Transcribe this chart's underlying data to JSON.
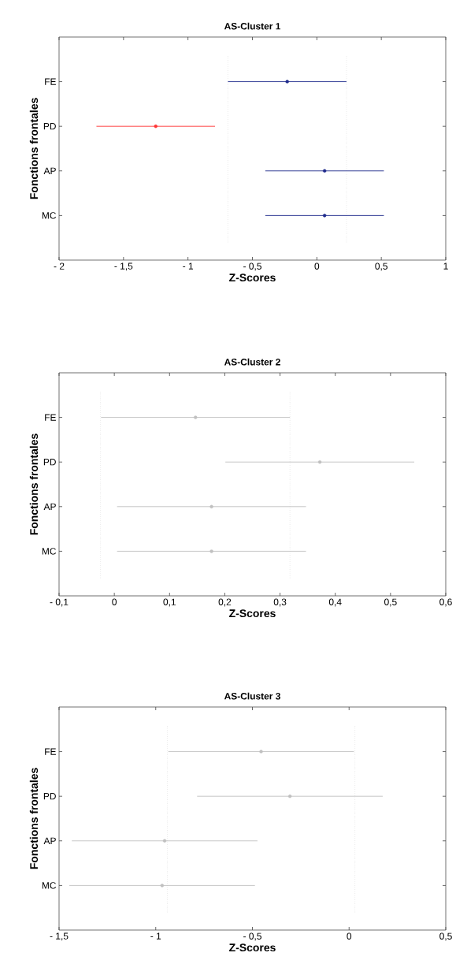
{
  "chart_data": [
    {
      "type": "scatter",
      "orientation": "horizontal",
      "title": "AS-Cluster 1",
      "xlabel": "Z-Scores",
      "ylabel": "Fonctions frontales",
      "categories": [
        "FE",
        "PD",
        "AP",
        "MC"
      ],
      "values": [
        -0.23,
        -1.25,
        0.06,
        0.06
      ],
      "errors": [
        0.46,
        0.46,
        0.46,
        0.46
      ],
      "colors": [
        "#1f2a8c",
        "#ff3333",
        "#1f2a8c",
        "#1f2a8c"
      ],
      "xlim": [
        -2,
        1
      ],
      "xticks": [
        {
          "value": -2,
          "label": "- 2"
        },
        {
          "value": -1.5,
          "label": "- 1,5"
        },
        {
          "value": -1,
          "label": "- 1"
        },
        {
          "value": -0.5,
          "label": "- 0,5"
        },
        0,
        {
          "value": 0.5,
          "label": "0,5"
        },
        1
      ],
      "ref_lines": [
        {
          "axis": "x",
          "value": -0.69,
          "color": "#c8c8c8",
          "line_style": "dotted"
        },
        {
          "axis": "x",
          "value": 0.23,
          "color": "#c8c8c8",
          "line_style": "dotted"
        }
      ]
    },
    {
      "type": "scatter",
      "orientation": "horizontal",
      "title": "AS-Cluster 2",
      "xlabel": "Z-Scores",
      "ylabel": "Fonctions frontales",
      "categories": [
        "FE",
        "PD",
        "AP",
        "MC"
      ],
      "values": [
        0.147,
        0.372,
        0.176,
        0.176
      ],
      "errors": [
        0.171,
        0.171,
        0.171,
        0.171
      ],
      "colors": [
        "#c0c0c0",
        "#c0c0c0",
        "#c0c0c0",
        "#c0c0c0"
      ],
      "xlim": [
        -0.1,
        0.6
      ],
      "xticks": [
        {
          "value": -0.1,
          "label": "- 0,1"
        },
        0,
        {
          "value": 0.1,
          "label": "0,1"
        },
        {
          "value": 0.2,
          "label": "0,2"
        },
        {
          "value": 0.3,
          "label": "0,3"
        },
        {
          "value": 0.4,
          "label": "0,4"
        },
        {
          "value": 0.5,
          "label": "0,5"
        },
        {
          "value": 0.6,
          "label": "0,6"
        }
      ],
      "ref_lines": [
        {
          "axis": "x",
          "value": -0.025,
          "color": "#c8c8c8",
          "line_style": "dotted"
        },
        {
          "axis": "x",
          "value": 0.318,
          "color": "#c8c8c8",
          "line_style": "dotted"
        }
      ]
    },
    {
      "type": "scatter",
      "orientation": "horizontal",
      "title": "AS-Cluster 3",
      "xlabel": "Z-Scores",
      "ylabel": "Fonctions frontales",
      "categories": [
        "FE",
        "PD",
        "AP",
        "MC"
      ],
      "values": [
        -0.455,
        -0.306,
        -0.954,
        -0.967
      ],
      "errors": [
        0.48,
        0.48,
        0.48,
        0.48
      ],
      "colors": [
        "#c0c0c0",
        "#c0c0c0",
        "#c0c0c0",
        "#c0c0c0"
      ],
      "xlim": [
        -1.5,
        0.5
      ],
      "xticks": [
        {
          "value": -1.5,
          "label": "- 1,5"
        },
        {
          "value": -1,
          "label": "- 1"
        },
        {
          "value": -0.5,
          "label": "- 0,5"
        },
        0,
        {
          "value": 0.5,
          "label": "0,5"
        }
      ],
      "ref_lines": [
        {
          "axis": "x",
          "value": -0.94,
          "color": "#c8c8c8",
          "line_style": "dotted"
        },
        {
          "axis": "x",
          "value": 0.03,
          "color": "#c8c8c8",
          "line_style": "dotted"
        }
      ]
    }
  ]
}
